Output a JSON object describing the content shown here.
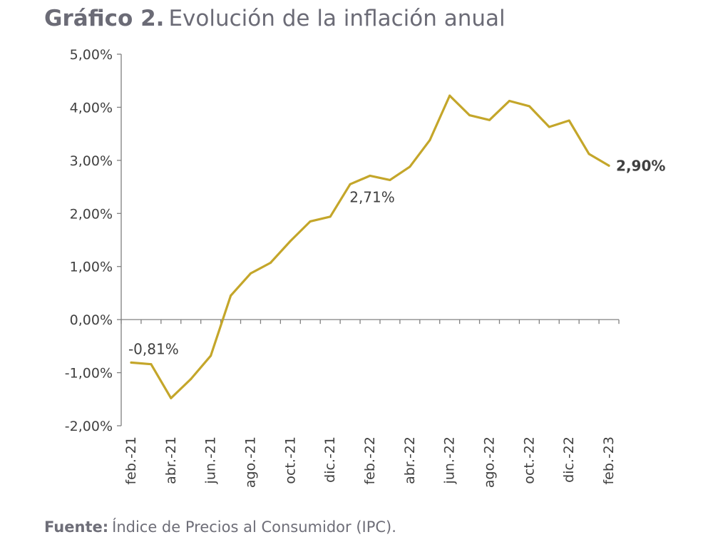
{
  "title": {
    "prefix": "Gráfico 2.",
    "text": "Evolución de la inflación anual"
  },
  "source": {
    "prefix": "Fuente:",
    "text": "Índice de Precios al Consumidor (IPC)."
  },
  "colors": {
    "line": "#c4a62a",
    "axis": "#808080",
    "text": "#404040"
  },
  "chart_data": {
    "type": "line",
    "ylim": [
      -2.0,
      5.0
    ],
    "yticks": [
      5,
      4,
      3,
      2,
      1,
      0,
      -1,
      -2
    ],
    "ytick_labels": [
      "5,00%",
      "4,00%",
      "3,00%",
      "2,00%",
      "1,00%",
      "0,00%",
      "-1,00%",
      "-2,00%"
    ],
    "x": [
      "feb.-21",
      "mar.-21",
      "abr.-21",
      "may.-21",
      "jun.-21",
      "jul.-21",
      "ago.-21",
      "sep.-21",
      "oct.-21",
      "nov.-21",
      "dic.-21",
      "ene.-22",
      "feb.-22",
      "mar.-22",
      "abr.-22",
      "may.-22",
      "jun.-22",
      "jul.-22",
      "ago.-22",
      "sep.-22",
      "oct.-22",
      "nov.-22",
      "dic.-22",
      "ene.-23",
      "feb.-23"
    ],
    "xtick_labels": [
      "feb.-21",
      "abr.-21",
      "jun.-21",
      "ago.-21",
      "oct.-21",
      "dic.-21",
      "feb.-22",
      "abr.-22",
      "jun.-22",
      "ago.-22",
      "oct.-22",
      "dic.-22",
      "feb.-23"
    ],
    "series": [
      {
        "values": [
          -0.81,
          -0.84,
          -1.48,
          -1.12,
          -0.68,
          0.45,
          0.87,
          1.07,
          1.48,
          1.85,
          1.94,
          2.55,
          2.71,
          2.63,
          2.88,
          3.38,
          4.22,
          3.85,
          3.76,
          4.12,
          4.02,
          3.63,
          3.75,
          3.12,
          2.9
        ]
      }
    ],
    "annotations": [
      {
        "index": 0,
        "text": "-0,81%",
        "bold": false
      },
      {
        "index": 12,
        "text": "2,71%",
        "bold": false
      },
      {
        "index": 24,
        "text": "2,90%",
        "bold": true
      }
    ]
  }
}
